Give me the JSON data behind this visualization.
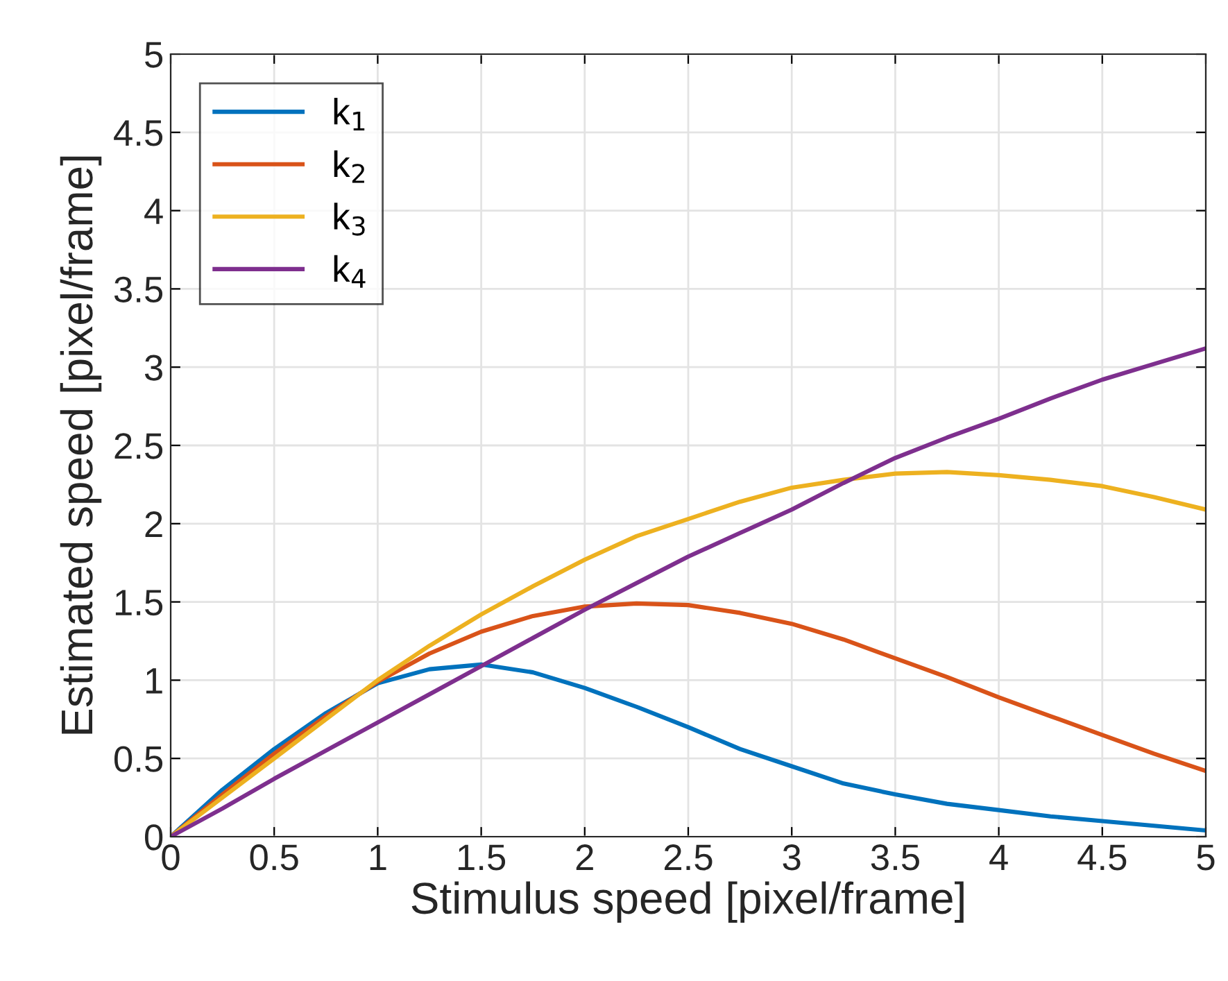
{
  "chart_data": {
    "type": "line",
    "xlabel": "Stimulus speed [pixel/frame]",
    "ylabel": "Estimated speed [pixel/frame]",
    "x": [
      0,
      0.25,
      0.5,
      0.75,
      1,
      1.25,
      1.5,
      1.75,
      2,
      2.25,
      2.5,
      2.75,
      3,
      3.25,
      3.5,
      3.75,
      4,
      4.25,
      4.5,
      4.75,
      5
    ],
    "series": [
      {
        "name": "k$_{1}$",
        "color": "#0072bd",
        "values": [
          0,
          0.3,
          0.56,
          0.79,
          0.98,
          1.07,
          1.1,
          1.05,
          0.95,
          0.83,
          0.7,
          0.56,
          0.45,
          0.34,
          0.27,
          0.21,
          0.17,
          0.13,
          0.1,
          0.07,
          0.04
        ]
      },
      {
        "name": "k$_{2}$",
        "color": "#d95319",
        "values": [
          0,
          0.27,
          0.53,
          0.77,
          0.99,
          1.17,
          1.31,
          1.41,
          1.47,
          1.49,
          1.48,
          1.43,
          1.36,
          1.26,
          1.14,
          1.02,
          0.89,
          0.77,
          0.65,
          0.53,
          0.42
        ]
      },
      {
        "name": "k$_{3}$",
        "color": "#edb120",
        "values": [
          0,
          0.25,
          0.5,
          0.75,
          1.0,
          1.22,
          1.42,
          1.6,
          1.77,
          1.92,
          2.03,
          2.14,
          2.23,
          2.28,
          2.32,
          2.33,
          2.31,
          2.28,
          2.24,
          2.17,
          2.09
        ]
      },
      {
        "name": "k$_{4}$",
        "color": "#7e2f8e",
        "values": [
          0,
          0.18,
          0.37,
          0.55,
          0.73,
          0.91,
          1.09,
          1.27,
          1.45,
          1.62,
          1.79,
          1.94,
          2.09,
          2.26,
          2.42,
          2.55,
          2.67,
          2.8,
          2.92,
          3.02,
          3.12
        ]
      }
    ],
    "xlim": [
      0,
      5
    ],
    "ylim": [
      0,
      5
    ],
    "xticks": [
      0,
      0.5,
      1,
      1.5,
      2,
      2.5,
      3,
      3.5,
      4,
      4.5,
      5
    ],
    "yticks": [
      0,
      0.5,
      1,
      1.5,
      2,
      2.5,
      3,
      3.5,
      4,
      4.5,
      5
    ],
    "grid": true,
    "legend": "top left",
    "marker": "none",
    "line_style": "solid"
  }
}
